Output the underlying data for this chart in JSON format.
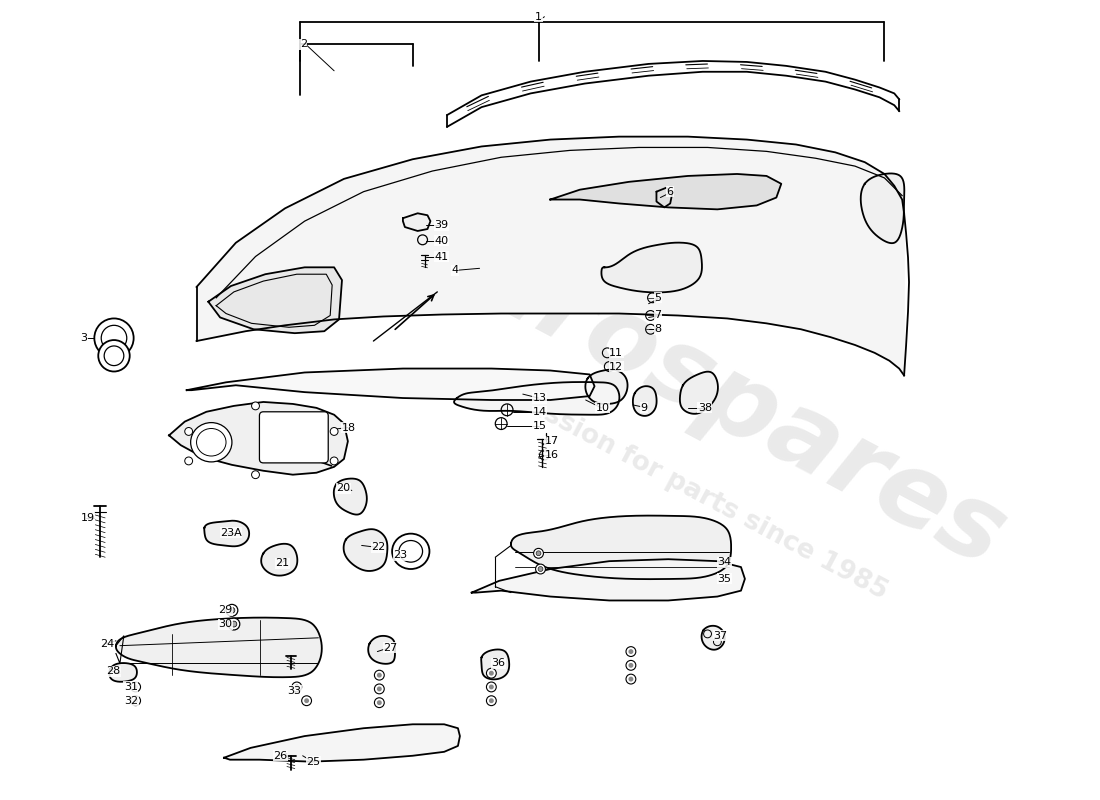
{
  "bg_color": "#ffffff",
  "line_color": "#000000",
  "lw": 1.3,
  "watermark1": "eurospares",
  "watermark2": "a passion for parts since 1985",
  "wm_color": "#cccccc",
  "wm_alpha": 0.4,
  "labels": [
    [
      "1",
      548,
      10
    ],
    [
      "2",
      305,
      38
    ],
    [
      "3",
      82,
      337
    ],
    [
      "4",
      459,
      268
    ],
    [
      "5",
      666,
      295
    ],
    [
      "6",
      678,
      188
    ],
    [
      "7",
      666,
      314
    ],
    [
      "8",
      666,
      328
    ],
    [
      "9",
      652,
      408
    ],
    [
      "10",
      606,
      408
    ],
    [
      "11",
      620,
      352
    ],
    [
      "12",
      620,
      366
    ],
    [
      "13",
      542,
      398
    ],
    [
      "14",
      542,
      412
    ],
    [
      "15",
      542,
      426
    ],
    [
      "16",
      554,
      456
    ],
    [
      "17",
      554,
      442
    ],
    [
      "18",
      348,
      428
    ],
    [
      "19",
      82,
      520
    ],
    [
      "20",
      342,
      490
    ],
    [
      "21",
      280,
      566
    ],
    [
      "22",
      378,
      550
    ],
    [
      "23",
      400,
      558
    ],
    [
      "23A",
      224,
      535
    ],
    [
      "24",
      102,
      648
    ],
    [
      "25",
      312,
      768
    ],
    [
      "26",
      278,
      762
    ],
    [
      "27",
      390,
      652
    ],
    [
      "28",
      108,
      676
    ],
    [
      "29",
      222,
      614
    ],
    [
      "30",
      222,
      628
    ],
    [
      "31",
      126,
      692
    ],
    [
      "32",
      126,
      706
    ],
    [
      "33",
      292,
      696
    ],
    [
      "34",
      730,
      565
    ],
    [
      "35",
      730,
      582
    ],
    [
      "36",
      500,
      668
    ],
    [
      "37",
      726,
      640
    ],
    [
      "38",
      710,
      408
    ],
    [
      "39",
      442,
      222
    ],
    [
      "40",
      442,
      238
    ],
    [
      "41",
      442,
      254
    ]
  ]
}
